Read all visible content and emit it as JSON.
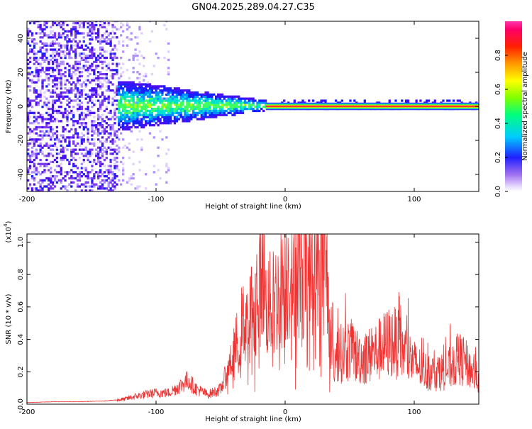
{
  "chart_data": [
    {
      "type": "heatmap",
      "title": "GN04.2025.289.04.27.C35",
      "xlabel": "Height of straight line (km)",
      "ylabel": "Frequency (Hz)",
      "xlim": [
        -200,
        150
      ],
      "ylim": [
        -50,
        50
      ],
      "x_ticks": [
        -200,
        -100,
        0,
        100
      ],
      "y_ticks": [
        -40,
        -20,
        0,
        20,
        40
      ],
      "colorbar": {
        "label": "Normalized spectral amplitude",
        "range": [
          0,
          1
        ],
        "ticks": [
          0.0,
          0.2,
          0.4,
          0.6,
          0.8
        ]
      },
      "regions": [
        {
          "x_range": [
            -200,
            -130
          ],
          "freq_range": [
            -50,
            50
          ],
          "amplitude": "low, scattered"
        },
        {
          "x_range": [
            -130,
            -15
          ],
          "freq_range": [
            -15,
            15
          ],
          "amplitude": "medium, cluster narrowing toward 0 Hz"
        },
        {
          "x_range": [
            -15,
            150
          ],
          "freq_range": [
            -1,
            1
          ],
          "amplitude": "high, narrow band at 0 Hz"
        }
      ]
    },
    {
      "type": "line",
      "title": "",
      "xlabel": "Height of straight line (km)",
      "ylabel": "SNR (10 * v/v)",
      "y_multiplier": "(x10",
      "y_multiplier_exp": "4",
      "xlim": [
        -200,
        150
      ],
      "ylim": [
        0,
        1.05
      ],
      "x_ticks": [
        -200,
        -100,
        0,
        100
      ],
      "y_ticks": [
        0.0,
        0.2,
        0.4,
        0.6,
        0.8,
        1.0
      ],
      "color": "#ee3333",
      "series": [
        {
          "name": "SNR",
          "x": [
            -200,
            -180,
            -160,
            -140,
            -125,
            -115,
            -100,
            -90,
            -80,
            -75,
            -70,
            -60,
            -50,
            -45,
            -40,
            -35,
            -30,
            -25,
            -20,
            -17,
            -15,
            -10,
            -5,
            0,
            5,
            10,
            15,
            20,
            25,
            28,
            30,
            32,
            34,
            36,
            38,
            40,
            45,
            50,
            55,
            60,
            65,
            70,
            75,
            80,
            85,
            88,
            90,
            95,
            100,
            105,
            110,
            115,
            120,
            125,
            130,
            135,
            140,
            145,
            150
          ],
          "y": [
            0.01,
            0.015,
            0.015,
            0.02,
            0.03,
            0.05,
            0.07,
            0.07,
            0.12,
            0.15,
            0.1,
            0.06,
            0.09,
            0.2,
            0.3,
            0.45,
            0.55,
            0.6,
            0.75,
            0.85,
            0.6,
            0.62,
            0.68,
            0.78,
            0.82,
            0.86,
            0.88,
            0.9,
            0.93,
            0.95,
            0.92,
            0.82,
            0.6,
            0.35,
            0.25,
            0.3,
            0.32,
            0.34,
            0.3,
            0.28,
            0.3,
            0.32,
            0.35,
            0.38,
            0.38,
            0.36,
            0.34,
            0.3,
            0.25,
            0.22,
            0.2,
            0.19,
            0.2,
            0.21,
            0.24,
            0.28,
            0.25,
            0.2,
            0.15
          ]
        }
      ]
    }
  ]
}
